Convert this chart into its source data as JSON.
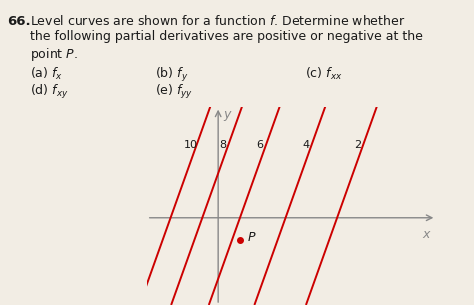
{
  "title_number": "66.",
  "title_text_line1": "Level curves are shown for a function $f$. Determine whether",
  "title_text_line2": "the following partial derivatives are positive or negative at the",
  "title_text_line3": "point $P$.",
  "row1": [
    "(a) $f_x$",
    "(b) $f_y$",
    "(c) $f_{xx}$"
  ],
  "row2": [
    "(d) $f_{xy}$",
    "(e) $f_{yy}$"
  ],
  "curve_labels": [
    10,
    8,
    6,
    4,
    2
  ],
  "line_color": "#cc0000",
  "axis_color": "#888888",
  "point_color": "#cc0000",
  "background_color": "#f2ede4",
  "text_color": "#1a1a1a",
  "slope": 2.8,
  "x_intercepts": [
    -1.2,
    -0.4,
    0.55,
    1.7,
    3.0
  ],
  "point_P": [
    0.55,
    -0.55
  ],
  "xlim": [
    -1.8,
    5.5
  ],
  "ylim": [
    -2.2,
    2.8
  ]
}
